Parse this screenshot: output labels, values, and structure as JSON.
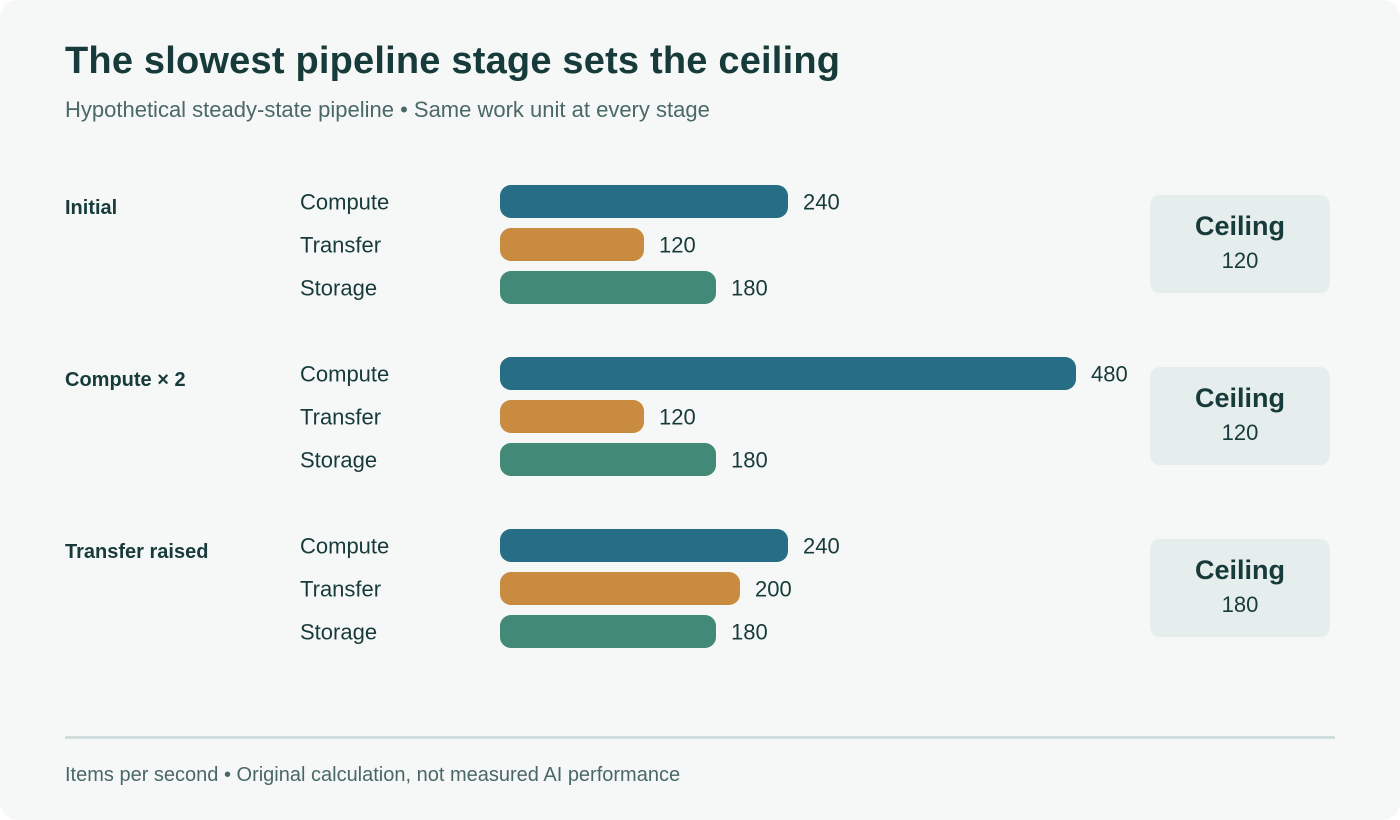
{
  "title": "The slowest pipeline stage sets the ceiling",
  "subtitle": "Hypothetical steady-state pipeline • Same work unit at every stage",
  "footer": "Items per second • Original calculation, not measured AI performance",
  "colors": {
    "Compute": "#276d85",
    "Transfer": "#c88b40",
    "Storage": "#428a77",
    "text_dark": "#173b3a",
    "ceiling_box": "#e5eeed"
  },
  "chart_data": {
    "type": "bar",
    "orientation": "horizontal",
    "categories": [
      "Compute",
      "Transfer",
      "Storage"
    ],
    "groups": [
      {
        "name": "Initial",
        "values": [
          240,
          120,
          180
        ],
        "ceiling_label": "Ceiling",
        "ceiling_value": "120"
      },
      {
        "name": "Compute × 2",
        "values": [
          480,
          120,
          180
        ],
        "ceiling_label": "Ceiling",
        "ceiling_value": "120"
      },
      {
        "name": "Transfer raised",
        "values": [
          240,
          200,
          180
        ],
        "ceiling_label": "Ceiling",
        "ceiling_value": "180"
      }
    ],
    "xlim": [
      0,
      480
    ],
    "unit": "Items per second",
    "grid": false,
    "legend": "none"
  }
}
